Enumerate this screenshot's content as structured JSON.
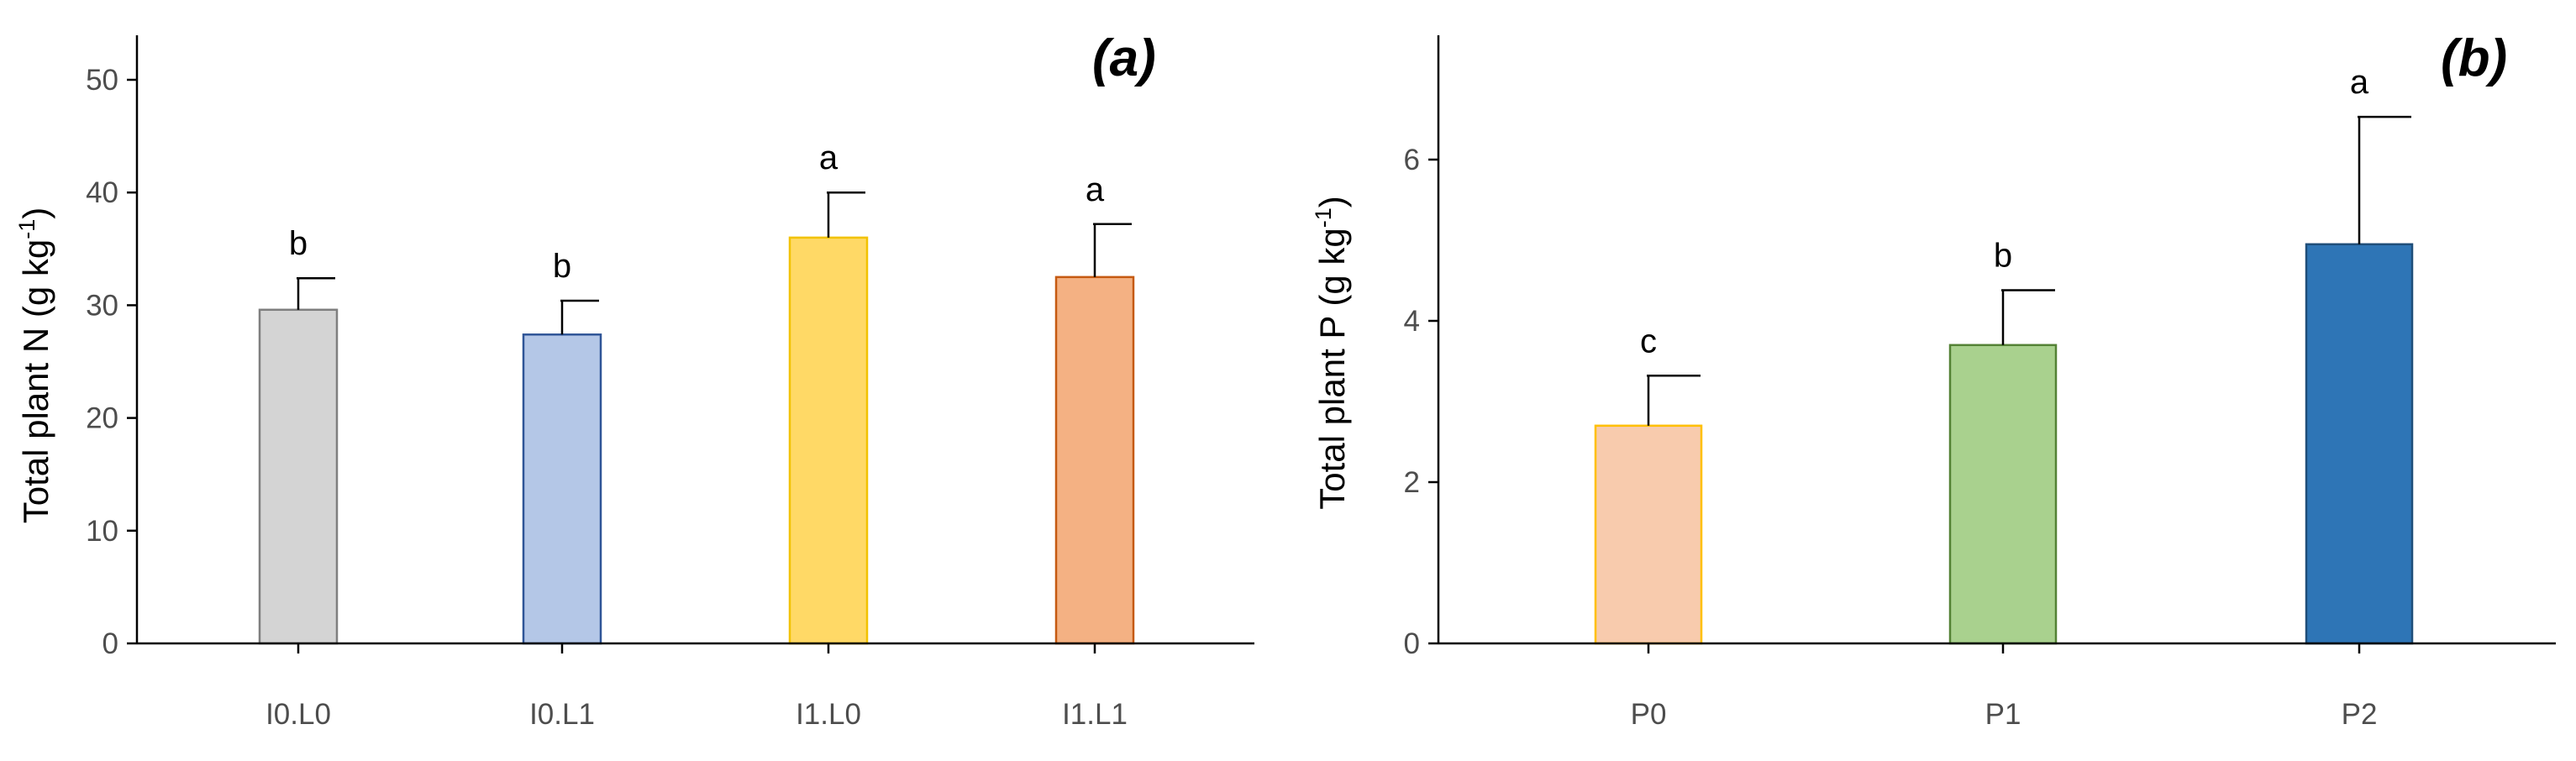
{
  "chart_data": [
    {
      "type": "bar",
      "panel_label": "(a)",
      "title": "",
      "xlabel": "",
      "ylabel": "Total plant N (g kg",
      "ylabel_sup": "-1",
      "ylabel_tail": ")",
      "ylim": [
        0,
        52
      ],
      "yticks": [
        0,
        10,
        20,
        30,
        40,
        50
      ],
      "categories": [
        "I0.L0",
        "I0.L1",
        "I1.L0",
        "I1.L1"
      ],
      "values": [
        29.6,
        27.4,
        36.0,
        32.5
      ],
      "errors": [
        2.8,
        3.0,
        4.0,
        4.7
      ],
      "letters": [
        "b",
        "b",
        "a",
        "a"
      ],
      "fill_colors": [
        "#d4d4d4",
        "#b4c7e7",
        "#ffd966",
        "#f4b183"
      ],
      "edge_colors": [
        "#7f7f7f",
        "#2f5597",
        "#f2c200",
        "#c55a11"
      ]
    },
    {
      "type": "bar",
      "panel_label": "(b)",
      "title": "",
      "xlabel": "",
      "ylabel": "Total plant P (g kg",
      "ylabel_sup": "-1",
      "ylabel_tail": ")",
      "ylim": [
        0,
        7.5
      ],
      "yticks": [
        0,
        2,
        4,
        6
      ],
      "categories": [
        "P0",
        "P1",
        "P2"
      ],
      "values": [
        2.7,
        3.7,
        4.95
      ],
      "errors": [
        0.62,
        0.68,
        1.58
      ],
      "letters": [
        "c",
        "b",
        "a"
      ],
      "fill_colors": [
        "#f8cbad",
        "#a9d18e",
        "#2e75b6"
      ],
      "edge_colors": [
        "#ffc000",
        "#548235",
        "#1f4e79"
      ]
    }
  ]
}
